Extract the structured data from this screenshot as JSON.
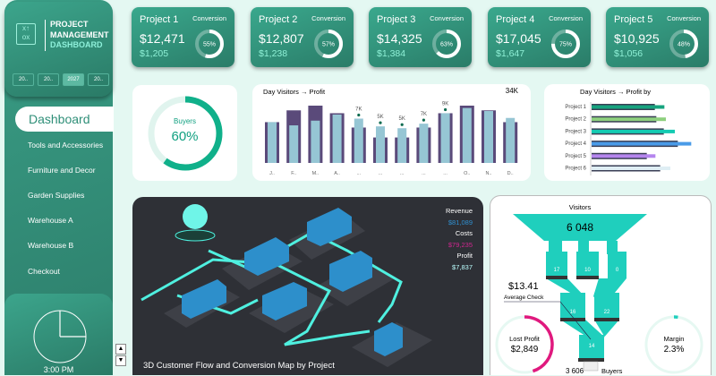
{
  "sidebar": {
    "brand": [
      "PROJECT",
      "MANAGEMENT",
      "DASHBOARD"
    ],
    "years": [
      "20..",
      "20..",
      "2027",
      "20.."
    ],
    "active_year": "2027",
    "items": [
      {
        "label": "Dashboard",
        "active": true
      },
      {
        "label": "Tools and Accessories"
      },
      {
        "label": "Furniture and Decor"
      },
      {
        "label": "Garden Supplies"
      },
      {
        "label": "Warehouse A"
      },
      {
        "label": "Warehouse B"
      },
      {
        "label": "Checkout"
      }
    ],
    "clock_time": "3:00 PM",
    "logo_icon": "strategy-board-icon"
  },
  "kpis": [
    {
      "title": "Project 1",
      "conversion_label": "Conversion",
      "revenue": "$12,471",
      "profit": "$1,205",
      "conversion": "55%",
      "pct": 55
    },
    {
      "title": "Project 2",
      "conversion_label": "Conversion",
      "revenue": "$12,807",
      "profit": "$1,238",
      "conversion": "57%",
      "pct": 57
    },
    {
      "title": "Project 3",
      "conversion_label": "Conversion",
      "revenue": "$14,325",
      "profit": "$1,384",
      "conversion": "63%",
      "pct": 63
    },
    {
      "title": "Project 4",
      "conversion_label": "Conversion",
      "revenue": "$17,045",
      "profit": "$1,647",
      "conversion": "75%",
      "pct": 75
    },
    {
      "title": "Project 5",
      "conversion_label": "Conversion",
      "revenue": "$10,925",
      "profit": "$1,056",
      "conversion": "48%",
      "pct": 48
    }
  ],
  "buyers": {
    "label": "Buyers",
    "value": "60%",
    "pct": 60,
    "color": "#10b08a"
  },
  "chart_data": [
    {
      "type": "bar",
      "title": "Day Visitors → Profit",
      "max_label": "34K",
      "ylim": [
        0,
        34
      ],
      "categories": [
        "J..",
        "F..",
        "M..",
        "A..",
        "...",
        "...",
        "...",
        "...",
        "...",
        "O..",
        "N..",
        "D.."
      ],
      "series": [
        {
          "values": [
            24.2,
            31.2,
            34,
            29.5,
            21,
            15.1,
            15.1,
            21,
            29.5,
            34,
            31.2,
            24.2
          ],
          "color": "#5a4a7a"
        },
        {
          "values": [
            24.2,
            22.3,
            25.1,
            28.7,
            26.3,
            21.7,
            20.6,
            23.3,
            29.5,
            32.6,
            30.8,
            26.7
          ],
          "color": "#96c6d4"
        }
      ],
      "labels": [
        "",
        "",
        "",
        "",
        "7K",
        "5K",
        "5K",
        "7K",
        "9K",
        "",
        "",
        ""
      ]
    },
    {
      "type": "bar",
      "orientation": "horizontal",
      "title": "Day Visitors → Profit by",
      "categories": [
        "Project 1",
        "Project 2",
        "Project 3",
        "Project 4",
        "Project 5",
        "Project 6"
      ],
      "series": [
        {
          "values": [
            212,
            217,
            242,
            289,
            185,
            230
          ],
          "color": "#3a3f55"
        },
        {
          "values": [
            244,
            249,
            279,
            334,
            214,
            264
          ],
          "colors": [
            "#16a37e",
            "#8ed07e",
            "#14cbb2",
            "#4a9be8",
            "#b585ee",
            "#dfeef4"
          ]
        }
      ]
    }
  ],
  "map": {
    "title": "3D Customer Flow and Conversion Map by Project",
    "revenue_label": "Revenue",
    "revenue": "$81,089",
    "costs_label": "Costs",
    "costs": "$79,235",
    "profit_label": "Profit",
    "profit": "$7,837",
    "revenue_color": "#2f8fd0",
    "costs_color": "#d0268f"
  },
  "funnel": {
    "visitors_label": "Visitors",
    "visitors": "6 048",
    "stage1": [
      "17",
      "10",
      "0"
    ],
    "stage2": [
      "16",
      "22"
    ],
    "stage3": "14",
    "buyers": "3 606",
    "buyers_label": "Buyers",
    "avg_check": "$13.41",
    "avg_check_label": "Average Check",
    "lost_profit_label": "Lost Profit",
    "lost_profit": "$2,849",
    "lost_pct": 45,
    "margin_label": "Margin",
    "margin": "2.3%",
    "margin_pct": 2.3,
    "color": "#1fcfbd"
  }
}
